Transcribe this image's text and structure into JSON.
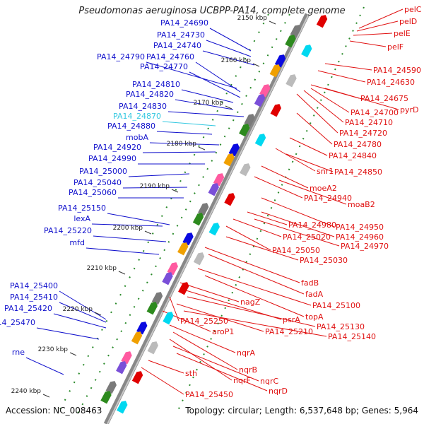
{
  "title": "Pseudomonas aeruginosa UCBPP-PA14, complete genome",
  "accession": "Accession: NC_008463",
  "summary": "Topology: circular; Length: 6,537,648 bp; Genes: 5,964",
  "ruler": [
    "2150 kbp",
    "2160 kbp",
    "2170 kbp",
    "2180 kbp",
    "2190 kbp",
    "2200 kbp",
    "2210 kbp",
    "2220 kbp",
    "2230 kbp",
    "2240 kbp"
  ],
  "left_labels": [
    "PA14_24690",
    "PA14_24730",
    "PA14_24740",
    "PA14_24790",
    "PA14_24760",
    "PA14_24770",
    "PA14_24810",
    "PA14_24820",
    "PA14_24830",
    "PA14_24870",
    "PA14_24880",
    "mobA",
    "PA14_24920",
    "PA14_24990",
    "PA14_25000",
    "PA14_25040",
    "PA14_25060",
    "PA14_25150",
    "lexA",
    "PA14_25220",
    "mfd",
    "PA14_25400",
    "PA14_25410",
    "PA14_25420",
    "PA14_25470",
    "rne"
  ],
  "right_labels": [
    "pelC",
    "pelD",
    "pelE",
    "pelF",
    "PA14_24590",
    "PA14_24630",
    "PA14_24675",
    "pyrD",
    "PA14_24700",
    "PA14_24710",
    "PA14_24720",
    "PA14_24780",
    "PA14_24840",
    "snr1",
    "PA14_24850",
    "moeA2",
    "PA14_24940",
    "moaB2",
    "PA14_24950",
    "PA14_24980",
    "PA14_24960",
    "PA14_25020",
    "PA14_24970",
    "PA14_25050",
    "PA14_25030",
    "fadB",
    "fadA",
    "PA14_25100",
    "topA",
    "nagZ",
    "psrA",
    "PA14_25130",
    "PA14_25250",
    "PA14_25210",
    "PA14_25140",
    "aroP1",
    "nqrA",
    "nqrB",
    "nqrF",
    "nqrC",
    "nqrD",
    "sth",
    "PA14_25450"
  ]
}
